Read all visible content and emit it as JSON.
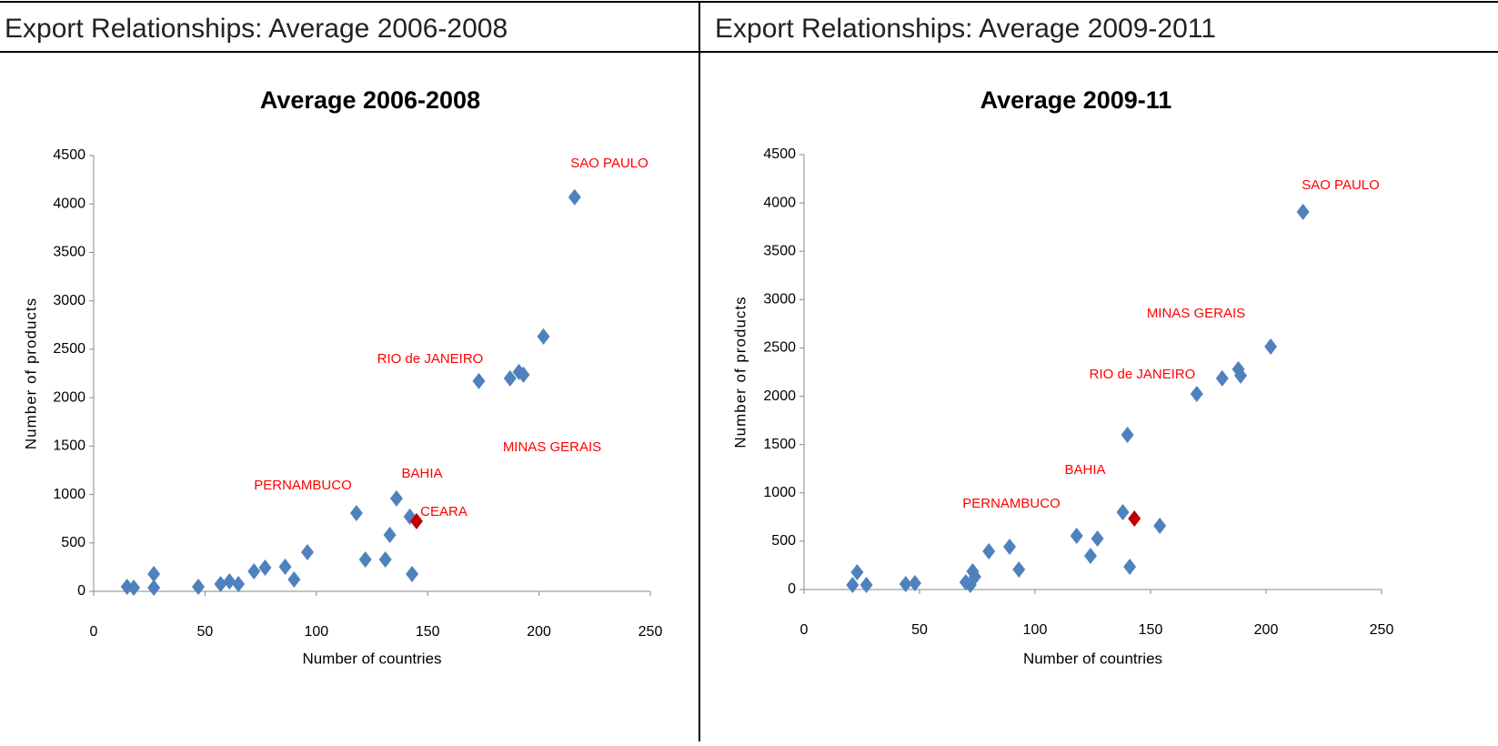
{
  "panels": [
    {
      "header": "Export Relationships: Average 2006-2008"
    },
    {
      "header": "Export Relationships: Average 2009-2011"
    }
  ],
  "chart_data": [
    {
      "type": "scatter",
      "title": "Average 2006-2008",
      "x_label": "Number of countries",
      "y_label": "Number of products",
      "xlim": [
        0,
        250
      ],
      "xticks": [
        0,
        50,
        100,
        150,
        200,
        250
      ],
      "ylim": [
        0,
        4500
      ],
      "yticks": [
        0,
        500,
        1000,
        1500,
        2000,
        2500,
        3000,
        3500,
        4000,
        4500
      ],
      "annotations": [
        "SAO PAULO",
        "RIO de JANEIRO",
        "MINAS GERAIS",
        "BAHIA",
        "PERNAMBUCO",
        "CEARA"
      ],
      "series": [
        {
          "color": "#4f81bd",
          "x": [
            15,
            18,
            27,
            27,
            47,
            57,
            61,
            65,
            72,
            77,
            86,
            90,
            96,
            118,
            122,
            131,
            133,
            136,
            142,
            143,
            173,
            187,
            191,
            193,
            202,
            216
          ],
          "values": [
            47,
            38,
            179,
            38,
            47,
            75,
            103,
            75,
            207,
            244,
            254,
            122,
            404,
            808,
            329,
            329,
            583,
            959,
            771,
            179,
            2171,
            2199,
            2265,
            2237,
            2632,
            4070
          ]
        },
        {
          "color": "#c00000",
          "x": [
            145
          ],
          "values": [
            724
          ]
        }
      ]
    },
    {
      "type": "scatter",
      "title": "Average 2009-11",
      "x_label": "Number of countries",
      "y_label": "Number of products",
      "xlim": [
        0,
        250
      ],
      "xticks": [
        0,
        50,
        100,
        150,
        200,
        250
      ],
      "ylim": [
        0,
        4500
      ],
      "yticks": [
        0,
        500,
        1000,
        1500,
        2000,
        2500,
        3000,
        3500,
        4000,
        4500
      ],
      "annotations": [
        "SAO PAULO",
        "MINAS GERAIS",
        "RIO de JANEIRO",
        "BAHIA",
        "PERNAMBUCO"
      ],
      "series": [
        {
          "color": "#4f81bd",
          "x": [
            21,
            23,
            27,
            44,
            48,
            70,
            72,
            73,
            74,
            80,
            89,
            93,
            118,
            124,
            127,
            138,
            140,
            141,
            154,
            170,
            181,
            188,
            189,
            202,
            216
          ],
          "values": [
            47,
            179,
            47,
            56,
            66,
            75,
            47,
            188,
            132,
            395,
            443,
            207,
            556,
            348,
            527,
            800,
            1601,
            235,
            659,
            2024,
            2185,
            2279,
            2213,
            2514,
            3908
          ]
        },
        {
          "color": "#c00000",
          "x": [
            143
          ],
          "values": [
            734
          ]
        }
      ]
    }
  ]
}
